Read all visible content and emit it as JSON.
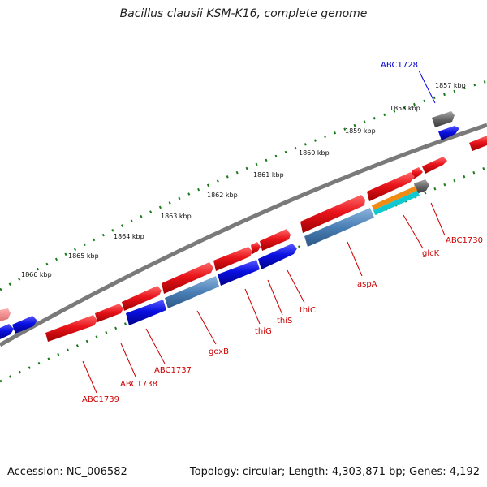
{
  "title": "Bacillus clausii KSM-K16, complete genome",
  "footer": {
    "accession": "Accession: NC_006582",
    "summary": "Topology: circular; Length: 4,303,871 bp; Genes: 4,192"
  },
  "colors": {
    "gene_forward": "#e8141b",
    "gene_reverse": "#0a10e0",
    "gene_grey": "#666666",
    "gene_steel": "#4a7fb5",
    "gene_orange": "#f08c14",
    "gene_cyan": "#10c8d0",
    "backbone": "#808080",
    "tick": "#1a7a1a",
    "label_red": "#cc0000",
    "label_blue": "#0000cc"
  },
  "scale_labels": [
    "1857 kbp",
    "1858 kbp",
    "1859 kbp",
    "1860 kbp",
    "1861 kbp",
    "1862 kbp",
    "1863 kbp",
    "1864 kbp",
    "1865 kbp",
    "1866 kbp"
  ],
  "gene_labels": [
    {
      "name": "ABC1728",
      "color": "blue"
    },
    {
      "name": "ABC1730",
      "color": "red"
    },
    {
      "name": "glcK",
      "color": "red"
    },
    {
      "name": "aspA",
      "color": "red"
    },
    {
      "name": "thiC",
      "color": "red"
    },
    {
      "name": "thiS",
      "color": "red"
    },
    {
      "name": "thiG",
      "color": "red"
    },
    {
      "name": "goxB",
      "color": "red"
    },
    {
      "name": "ABC1737",
      "color": "red"
    },
    {
      "name": "ABC1738",
      "color": "red"
    },
    {
      "name": "ABC1739",
      "color": "red"
    }
  ]
}
